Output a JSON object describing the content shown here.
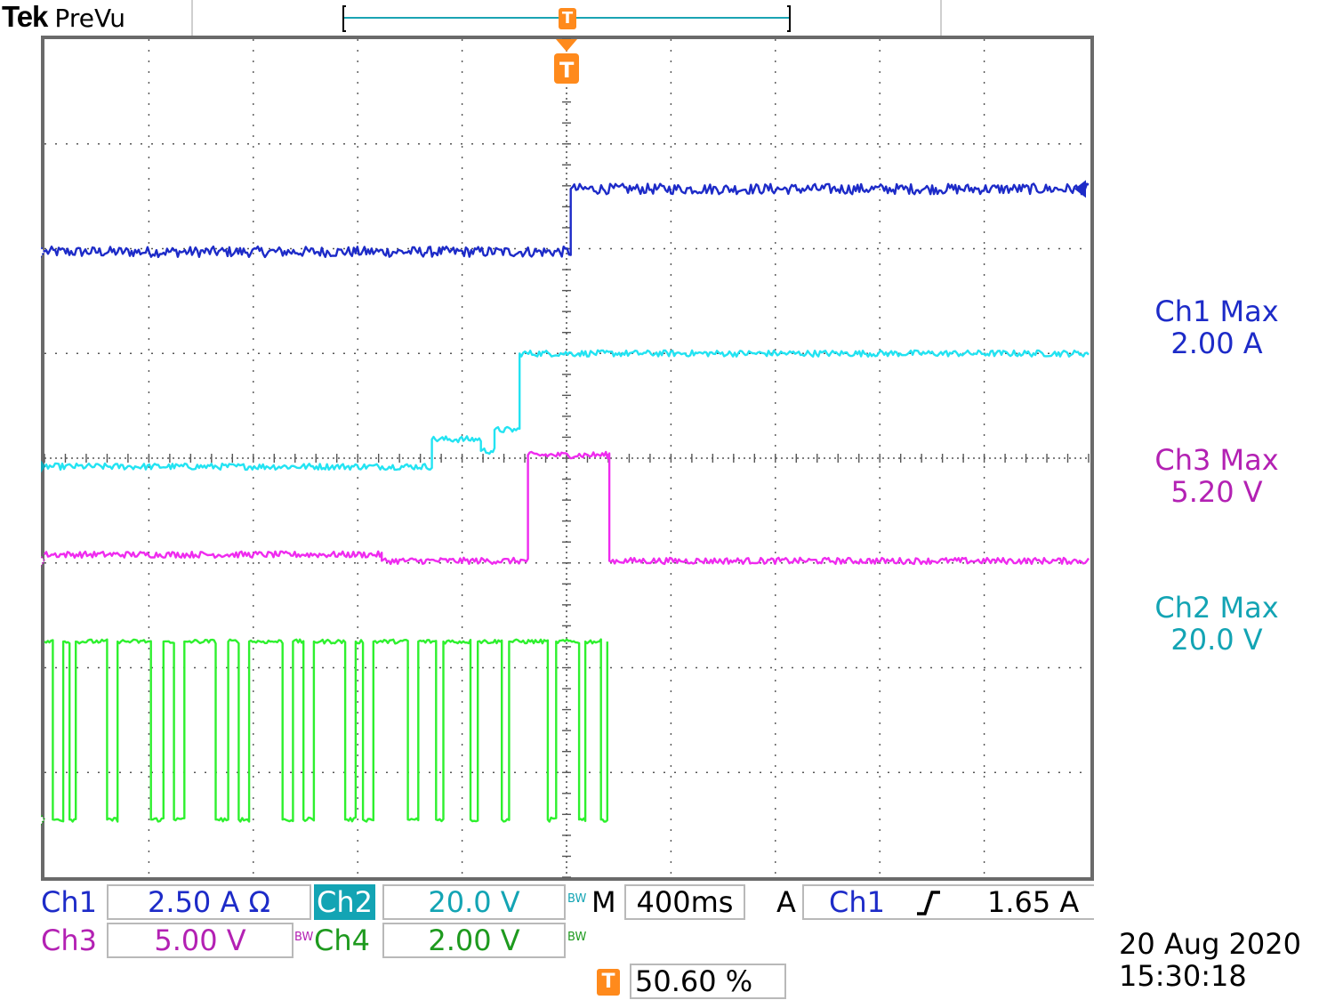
{
  "header": {
    "brand": "Tek",
    "mode": "PreVu",
    "trigger_marker": "T"
  },
  "colors": {
    "ch1": "#1d2bc8",
    "ch2": "#22e3f2",
    "ch2_label": "#13a4b4",
    "ch3": "#ef2bef",
    "ch3_label": "#b321b3",
    "ch4": "#2ef02e",
    "ch4_label": "#1e9a1e",
    "trigger": "#ff8a1c",
    "grid": "#555555"
  },
  "channel_markers": [
    {
      "label": "1",
      "color": "#1d2bc8"
    },
    {
      "label": "2",
      "color": "#13a4b4"
    },
    {
      "label": "3",
      "color": "#b321b3"
    },
    {
      "label": "4",
      "color": "#1e9a1e"
    }
  ],
  "trigger_marker": "T",
  "measurements": [
    {
      "name": "Ch1 Max",
      "value": "2.00 A",
      "color": "#1d2bc8"
    },
    {
      "name": "Ch3 Max",
      "value": "5.20 V",
      "color": "#b321b3"
    },
    {
      "name": "Ch2 Max",
      "value": "20.0 V",
      "color": "#13a4b4"
    }
  ],
  "status": {
    "ch1_label": "Ch1",
    "ch1_scale": "2.50 A Ω",
    "ch2_label": "Ch2",
    "ch2_scale": "20.0 V",
    "ch3_label": "Ch3",
    "ch3_scale": "5.00 V",
    "ch4_label": "Ch4",
    "ch4_scale": "2.00 V",
    "bw_mark": "BW",
    "timebase_label": "M",
    "timebase": "400ms",
    "acq_mode": "A",
    "trigger_source": "Ch1",
    "trigger_slope": "rising",
    "trigger_level": "1.65 A",
    "trigger_position_marker": "T",
    "trigger_position": "50.60 %",
    "date": "20 Aug 2020",
    "time": "15:30:18"
  },
  "chart_data": {
    "type": "line",
    "x_divisions": 10,
    "y_divisions": 8,
    "x_range_div": [
      -5,
      5
    ],
    "y_range_div": [
      -4,
      4
    ],
    "grid": true,
    "series": [
      {
        "name": "Ch1",
        "color": "#1d2bc8",
        "noise": 0.05,
        "points": [
          [
            -5,
            1.97
          ],
          [
            0.04,
            1.97
          ],
          [
            0.04,
            2.57
          ],
          [
            1.0,
            2.57
          ],
          [
            5,
            2.57
          ]
        ]
      },
      {
        "name": "Ch2",
        "color": "#22e3f2",
        "noise": 0.03,
        "points": [
          [
            -5,
            -0.08
          ],
          [
            -1.29,
            -0.08
          ],
          [
            -1.29,
            0.18
          ],
          [
            -0.82,
            0.18
          ],
          [
            -0.82,
            0.07
          ],
          [
            -0.69,
            0.07
          ],
          [
            -0.69,
            0.27
          ],
          [
            -0.45,
            0.27
          ],
          [
            -0.45,
            1.0
          ],
          [
            5,
            1.0
          ]
        ]
      },
      {
        "name": "Ch3",
        "color": "#ef2bef",
        "noise": 0.03,
        "points": [
          [
            -5,
            -0.92
          ],
          [
            -1.77,
            -0.92
          ],
          [
            -1.77,
            -0.98
          ],
          [
            -0.37,
            -0.98
          ],
          [
            -0.37,
            0.03
          ],
          [
            0.41,
            0.03
          ],
          [
            0.41,
            -0.98
          ],
          [
            5,
            -0.98
          ]
        ]
      },
      {
        "name": "Ch4",
        "color": "#2ef02e",
        "noise": 0.02,
        "points": [
          [
            -5,
            -1.75
          ],
          [
            -4.92,
            -1.75
          ],
          [
            -4.92,
            -3.45
          ],
          [
            -4.82,
            -3.45
          ],
          [
            -4.82,
            -1.75
          ],
          [
            -4.76,
            -1.75
          ],
          [
            -4.76,
            -3.45
          ],
          [
            -4.7,
            -3.45
          ],
          [
            -4.7,
            -1.75
          ],
          [
            -4.4,
            -1.75
          ],
          [
            -4.4,
            -3.45
          ],
          [
            -4.3,
            -3.45
          ],
          [
            -4.3,
            -1.75
          ],
          [
            -3.98,
            -1.75
          ],
          [
            -3.98,
            -3.45
          ],
          [
            -3.86,
            -3.45
          ],
          [
            -3.86,
            -1.75
          ],
          [
            -3.76,
            -1.75
          ],
          [
            -3.76,
            -3.45
          ],
          [
            -3.66,
            -3.45
          ],
          [
            -3.66,
            -1.75
          ],
          [
            -3.36,
            -1.75
          ],
          [
            -3.36,
            -3.45
          ],
          [
            -3.24,
            -3.45
          ],
          [
            -3.24,
            -1.75
          ],
          [
            -3.14,
            -1.75
          ],
          [
            -3.14,
            -3.45
          ],
          [
            -3.04,
            -3.45
          ],
          [
            -3.04,
            -1.75
          ],
          [
            -2.72,
            -1.75
          ],
          [
            -2.72,
            -3.45
          ],
          [
            -2.62,
            -3.45
          ],
          [
            -2.62,
            -1.75
          ],
          [
            -2.52,
            -1.75
          ],
          [
            -2.52,
            -3.45
          ],
          [
            -2.42,
            -3.45
          ],
          [
            -2.42,
            -1.75
          ],
          [
            -2.12,
            -1.75
          ],
          [
            -2.12,
            -3.45
          ],
          [
            -2.02,
            -3.45
          ],
          [
            -2.02,
            -1.75
          ],
          [
            -1.95,
            -1.75
          ],
          [
            -1.95,
            -3.45
          ],
          [
            -1.85,
            -3.45
          ],
          [
            -1.85,
            -1.75
          ],
          [
            -1.52,
            -1.75
          ],
          [
            -1.52,
            -3.45
          ],
          [
            -1.42,
            -3.45
          ],
          [
            -1.42,
            -1.75
          ],
          [
            -1.25,
            -1.75
          ],
          [
            -1.25,
            -3.45
          ],
          [
            -1.18,
            -3.45
          ],
          [
            -1.18,
            -1.75
          ],
          [
            -0.92,
            -1.75
          ],
          [
            -0.92,
            -3.45
          ],
          [
            -0.85,
            -3.45
          ],
          [
            -0.85,
            -1.75
          ],
          [
            -0.62,
            -1.75
          ],
          [
            -0.62,
            -3.45
          ],
          [
            -0.55,
            -3.45
          ],
          [
            -0.55,
            -1.75
          ],
          [
            -0.18,
            -1.75
          ],
          [
            -0.18,
            -3.45
          ],
          [
            -0.1,
            -3.45
          ],
          [
            -0.1,
            -1.75
          ],
          [
            0.12,
            -1.75
          ],
          [
            0.12,
            -3.45
          ],
          [
            0.18,
            -3.45
          ],
          [
            0.18,
            -1.75
          ],
          [
            0.33,
            -1.75
          ],
          [
            0.33,
            -3.45
          ],
          [
            0.39,
            -3.45
          ],
          [
            0.39,
            -1.75
          ]
        ]
      }
    ]
  }
}
